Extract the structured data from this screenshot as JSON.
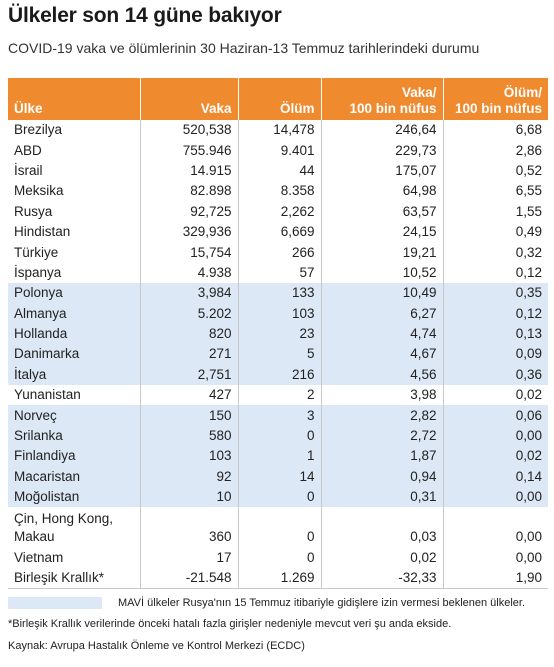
{
  "title": "Ülkeler son 14 güne bakıyor",
  "subtitle": "COVID-19 vaka ve ölümlerinin 30 Haziran-13 Temmuz tarihlerindeki durumu",
  "table": {
    "headers": [
      "Ülke",
      "Vaka",
      "Ölüm",
      "Vaka/ 100 bin nüfus",
      "Ölüm/ 100 bin nüfus"
    ],
    "rows": [
      {
        "country": "Brezilya",
        "cases": "520,538",
        "deaths": "14,478",
        "cases_per100k": "246,64",
        "deaths_per100k": "6,68",
        "blue": false
      },
      {
        "country": "ABD",
        "cases": "755.946",
        "deaths": "9.401",
        "cases_per100k": "229,73",
        "deaths_per100k": "2,86",
        "blue": false
      },
      {
        "country": "İsrail",
        "cases": "14.915",
        "deaths": "44",
        "cases_per100k": "175,07",
        "deaths_per100k": "0,52",
        "blue": false
      },
      {
        "country": "Meksika",
        "cases": "82.898",
        "deaths": "8.358",
        "cases_per100k": "64,98",
        "deaths_per100k": "6,55",
        "blue": false
      },
      {
        "country": "Rusya",
        "cases": "92,725",
        "deaths": "2,262",
        "cases_per100k": "63,57",
        "deaths_per100k": "1,55",
        "blue": false
      },
      {
        "country": "Hindistan",
        "cases": "329,936",
        "deaths": "6,669",
        "cases_per100k": "24,15",
        "deaths_per100k": "0,49",
        "blue": false
      },
      {
        "country": "Türkiye",
        "cases": "15,754",
        "deaths": "266",
        "cases_per100k": "19,21",
        "deaths_per100k": "0,32",
        "blue": false
      },
      {
        "country": "İspanya",
        "cases": "4.938",
        "deaths": "57",
        "cases_per100k": "10,52",
        "deaths_per100k": "0,12",
        "blue": false
      },
      {
        "country": "Polonya",
        "cases": "3,984",
        "deaths": "133",
        "cases_per100k": "10,49",
        "deaths_per100k": "0,35",
        "blue": true
      },
      {
        "country": "Almanya",
        "cases": "5.202",
        "deaths": "103",
        "cases_per100k": "6,27",
        "deaths_per100k": "0,12",
        "blue": true
      },
      {
        "country": "Hollanda",
        "cases": "820",
        "deaths": "23",
        "cases_per100k": "4,74",
        "deaths_per100k": "0,13",
        "blue": true
      },
      {
        "country": "Danimarka",
        "cases": "271",
        "deaths": "5",
        "cases_per100k": "4,67",
        "deaths_per100k": "0,09",
        "blue": true
      },
      {
        "country": "İtalya",
        "cases": "2,751",
        "deaths": "216",
        "cases_per100k": "4,56",
        "deaths_per100k": "0,36",
        "blue": true
      },
      {
        "country": "Yunanistan",
        "cases": "427",
        "deaths": "2",
        "cases_per100k": "3,98",
        "deaths_per100k": "0,02",
        "blue": false
      },
      {
        "country": "Norveç",
        "cases": "150",
        "deaths": "3",
        "cases_per100k": "2,82",
        "deaths_per100k": "0,06",
        "blue": true
      },
      {
        "country": "Srilanka",
        "cases": "580",
        "deaths": "0",
        "cases_per100k": "2,72",
        "deaths_per100k": "0,00",
        "blue": true
      },
      {
        "country": "Finlandiya",
        "cases": "103",
        "deaths": "1",
        "cases_per100k": "1,87",
        "deaths_per100k": "0,02",
        "blue": true
      },
      {
        "country": "Macaristan",
        "cases": "92",
        "deaths": "14",
        "cases_per100k": "0,94",
        "deaths_per100k": "0,14",
        "blue": true
      },
      {
        "country": "Moğolistan",
        "cases": "10",
        "deaths": "0",
        "cases_per100k": "0,31",
        "deaths_per100k": "0,00",
        "blue": true
      },
      {
        "country": "Çin, Hong Kong, Makau",
        "cases": "360",
        "deaths": "0",
        "cases_per100k": "0,03",
        "deaths_per100k": "0,00",
        "blue": false,
        "double": true
      },
      {
        "country": "Vietnam",
        "cases": "17",
        "deaths": "0",
        "cases_per100k": "0,02",
        "deaths_per100k": "0,00",
        "blue": false
      },
      {
        "country": "Birleşik Krallık*",
        "cases": "-21.548",
        "deaths": "1.269",
        "cases_per100k": "-32,33",
        "deaths_per100k": "1,90",
        "blue": false
      }
    ]
  },
  "legend": {
    "color": "#dce8f5",
    "text": "MAVİ ülkeler Rusya'nın 15 Temmuz itibariyle gidişlere izin vermesi beklenen ülkeler."
  },
  "footnote": "*Birleşik Krallık verilerinde önceki hatalı fazla girişler nedeniyle mevcut veri şu anda ekside.",
  "source": "Kaynak: Avrupa Hastalık Önleme ve Kontrol Merkezi (ECDC)",
  "colors": {
    "header_bg": "#f08a2e",
    "highlight_row": "#dce8f5"
  }
}
